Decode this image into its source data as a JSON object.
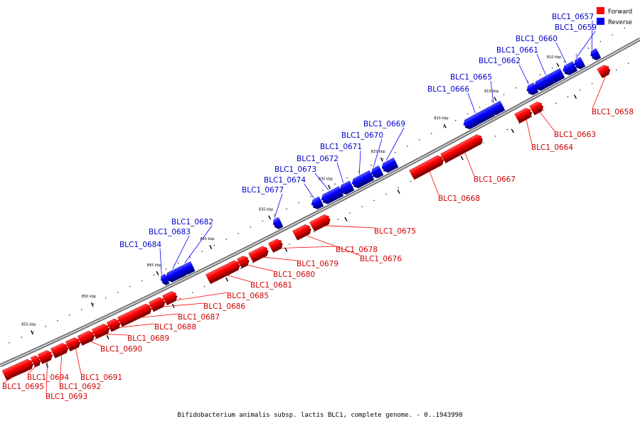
{
  "caption": "Bifidobacterium animalis subsp. lactis BLC1, complete genome. - 0..1943990",
  "legend": [
    {
      "label": "Forward",
      "color": "#ff0000"
    },
    {
      "label": "Reverse",
      "color": "#0000ff"
    }
  ],
  "colors": {
    "forward": "#ff0000",
    "reverse": "#0000ff",
    "backbone": "#999999"
  },
  "tick_labels": [
    "810 kbp",
    "815 kbp",
    "820 kbp",
    "825 kbp",
    "830 kbp",
    "835 kbp",
    "840 kbp",
    "845 kbp",
    "850 kbp",
    "855 kbp"
  ],
  "genes": [
    {
      "name": "BLC1_0657",
      "strand": "reverse"
    },
    {
      "name": "BLC1_0658",
      "strand": "forward"
    },
    {
      "name": "BLC1_0659",
      "strand": "reverse"
    },
    {
      "name": "BLC1_0660",
      "strand": "reverse"
    },
    {
      "name": "BLC1_0661",
      "strand": "reverse"
    },
    {
      "name": "BLC1_0662",
      "strand": "reverse"
    },
    {
      "name": "BLC1_0663",
      "strand": "forward"
    },
    {
      "name": "BLC1_0664",
      "strand": "forward"
    },
    {
      "name": "BLC1_0665",
      "strand": "reverse"
    },
    {
      "name": "BLC1_0666",
      "strand": "reverse"
    },
    {
      "name": "BLC1_0667",
      "strand": "forward"
    },
    {
      "name": "BLC1_0668",
      "strand": "forward"
    },
    {
      "name": "BLC1_0669",
      "strand": "reverse"
    },
    {
      "name": "BLC1_0670",
      "strand": "reverse"
    },
    {
      "name": "BLC1_0671",
      "strand": "reverse"
    },
    {
      "name": "BLC1_0672",
      "strand": "reverse"
    },
    {
      "name": "BLC1_0673",
      "strand": "reverse"
    },
    {
      "name": "BLC1_0674",
      "strand": "reverse"
    },
    {
      "name": "BLC1_0675",
      "strand": "forward"
    },
    {
      "name": "BLC1_0676",
      "strand": "forward"
    },
    {
      "name": "BLC1_0677",
      "strand": "reverse"
    },
    {
      "name": "BLC1_0678",
      "strand": "forward"
    },
    {
      "name": "BLC1_0679",
      "strand": "forward"
    },
    {
      "name": "BLC1_0680",
      "strand": "forward"
    },
    {
      "name": "BLC1_0681",
      "strand": "forward"
    },
    {
      "name": "BLC1_0682",
      "strand": "reverse"
    },
    {
      "name": "BLC1_0683",
      "strand": "reverse"
    },
    {
      "name": "BLC1_0684",
      "strand": "reverse"
    },
    {
      "name": "BLC1_0685",
      "strand": "forward"
    },
    {
      "name": "BLC1_0686",
      "strand": "forward"
    },
    {
      "name": "BLC1_0687",
      "strand": "forward"
    },
    {
      "name": "BLC1_0688",
      "strand": "forward"
    },
    {
      "name": "BLC1_0689",
      "strand": "forward"
    },
    {
      "name": "BLC1_0690",
      "strand": "forward"
    },
    {
      "name": "BLC1_0691",
      "strand": "forward"
    },
    {
      "name": "BLC1_0692",
      "strand": "forward"
    },
    {
      "name": "BLC1_0693",
      "strand": "forward"
    },
    {
      "name": "BLC1_0694",
      "strand": "forward"
    },
    {
      "name": "BLC1_0695",
      "strand": "forward"
    }
  ]
}
